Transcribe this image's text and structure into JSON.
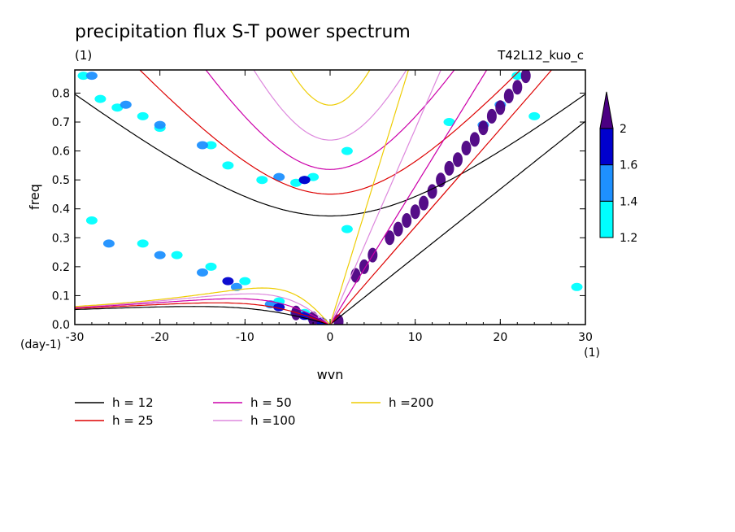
{
  "chart_data": {
    "type": "heatmap",
    "title": "precipitation flux S-T power spectrum",
    "subtitle_left": "(1)",
    "subtitle_right": "T42L12_kuo_c",
    "xlabel": "wvn",
    "ylabel": "freq",
    "x_unit": "(1)",
    "y_unit": "(day-1)",
    "xlim": [
      -30,
      30
    ],
    "ylim": [
      0,
      0.88
    ],
    "xticks": [
      -30,
      -20,
      -10,
      0,
      10,
      20,
      30
    ],
    "xtick_labels": [
      "-30",
      "-20",
      "-10",
      "0",
      "10",
      "20",
      "30"
    ],
    "yticks": [
      0,
      0.1,
      0.2,
      0.3,
      0.4,
      0.5,
      0.6,
      0.7,
      0.8
    ],
    "ytick_labels": [
      "0.0",
      "0.1",
      "0.2",
      "0.3",
      "0.4",
      "0.5",
      "0.6",
      "0.7",
      "0.8"
    ],
    "colorbar": {
      "levels": [
        1.2,
        1.4,
        1.6,
        2
      ],
      "level_labels": [
        "1.2",
        "1.4",
        "1.6",
        "2"
      ],
      "colors": [
        "#00ffff",
        "#1e90ff",
        "#0000cd",
        "#4b0082"
      ]
    },
    "contour_regions": [
      {
        "level": 1.2,
        "points": [
          [
            -29,
            0.86
          ],
          [
            -27,
            0.78
          ],
          [
            -25,
            0.75
          ],
          [
            -22,
            0.72
          ],
          [
            -20,
            0.68
          ],
          [
            -14,
            0.62
          ],
          [
            -12,
            0.55
          ],
          [
            -8,
            0.5
          ],
          [
            -4,
            0.49
          ],
          [
            -2,
            0.51
          ],
          [
            2,
            0.33
          ],
          [
            2,
            0.6
          ],
          [
            14,
            0.7
          ],
          [
            22,
            0.86
          ],
          [
            24,
            0.72
          ],
          [
            29,
            0.13
          ],
          [
            -28,
            0.36
          ],
          [
            -22,
            0.28
          ],
          [
            -18,
            0.24
          ],
          [
            -14,
            0.2
          ],
          [
            -10,
            0.15
          ],
          [
            -6,
            0.08
          ],
          [
            -3,
            0.04
          ],
          [
            -1,
            0.01
          ]
        ]
      },
      {
        "level": 1.4,
        "points": [
          [
            -28,
            0.86
          ],
          [
            -24,
            0.76
          ],
          [
            -20,
            0.69
          ],
          [
            -15,
            0.62
          ],
          [
            -3,
            0.5
          ],
          [
            -6,
            0.51
          ],
          [
            -26,
            0.28
          ],
          [
            -20,
            0.24
          ],
          [
            -15,
            0.18
          ],
          [
            -11,
            0.13
          ],
          [
            -7,
            0.07
          ],
          [
            -4,
            0.04
          ],
          [
            -2,
            0.02
          ],
          [
            18,
            0.69
          ],
          [
            20,
            0.76
          ]
        ]
      },
      {
        "level": 1.6,
        "points": [
          [
            -3,
            0.5
          ],
          [
            -12,
            0.15
          ],
          [
            -6,
            0.06
          ],
          [
            -3,
            0.03
          ],
          [
            -1,
            0.01
          ]
        ]
      },
      {
        "level": 2,
        "points": [
          [
            -4,
            0.04
          ],
          [
            -2,
            0.02
          ],
          [
            1,
            0.01
          ],
          [
            3,
            0.17
          ],
          [
            4,
            0.2
          ],
          [
            5,
            0.24
          ],
          [
            7,
            0.3
          ],
          [
            8,
            0.33
          ],
          [
            9,
            0.36
          ],
          [
            10,
            0.39
          ],
          [
            11,
            0.42
          ],
          [
            12,
            0.46
          ],
          [
            13,
            0.5
          ],
          [
            14,
            0.54
          ],
          [
            15,
            0.57
          ],
          [
            16,
            0.61
          ],
          [
            17,
            0.64
          ],
          [
            18,
            0.68
          ],
          [
            19,
            0.72
          ],
          [
            20,
            0.75
          ],
          [
            21,
            0.79
          ],
          [
            22,
            0.82
          ],
          [
            23,
            0.86
          ]
        ]
      }
    ],
    "dispersion_curves": [
      {
        "label": "h = 12",
        "color": "#000000"
      },
      {
        "label": "h = 25",
        "color": "#dd0000"
      },
      {
        "label": "h = 50",
        "color": "#cc00aa"
      },
      {
        "label": "h =100",
        "color": "#dd88dd"
      },
      {
        "label": "h =200",
        "color": "#eecc00"
      }
    ],
    "equivalent_depths": [
      12,
      25,
      50,
      100,
      200
    ]
  }
}
